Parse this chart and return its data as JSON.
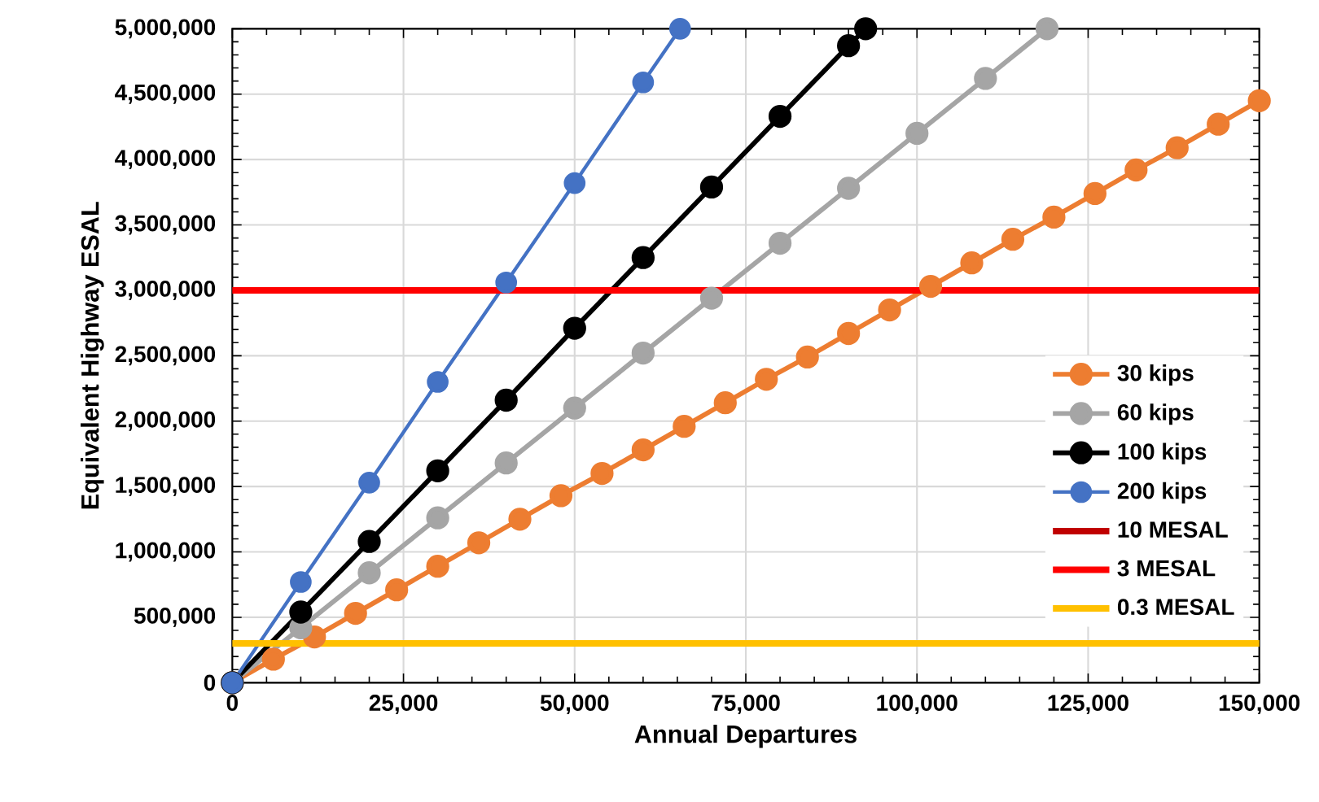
{
  "chart_data": {
    "type": "line",
    "xlabel": "Annual Departures",
    "ylabel": "Equivalent Highway ESAL",
    "xlim": [
      0,
      150000
    ],
    "ylim": [
      0,
      5000000
    ],
    "xticks": [
      0,
      {
        "value": 25000,
        "label": "25,000"
      },
      {
        "value": 50000,
        "label": "50,000"
      },
      {
        "value": 75000,
        "label": "75,000"
      },
      {
        "value": 100000,
        "label": "100,000"
      },
      {
        "value": 125000,
        "label": "125,000"
      },
      {
        "value": 150000,
        "label": "150,000"
      }
    ],
    "yticks": [
      0,
      {
        "value": 500000,
        "label": "500,000"
      },
      {
        "value": 1000000,
        "label": "1,000,000"
      },
      {
        "value": 1500000,
        "label": "1,500,000"
      },
      {
        "value": 2000000,
        "label": "2,000,000"
      },
      {
        "value": 2500000,
        "label": "2,500,000"
      },
      {
        "value": 3000000,
        "label": "3,000,000"
      },
      {
        "value": 3500000,
        "label": "3,500,000"
      },
      {
        "value": 4000000,
        "label": "4,000,000"
      },
      {
        "value": 4500000,
        "label": "4,500,000"
      },
      {
        "value": 5000000,
        "label": "5,000,000"
      }
    ],
    "grid": true,
    "legend": "bottom right",
    "marker": "circle",
    "series": [
      {
        "name": "30 kips",
        "color": "#ed7d31",
        "x": [
          0,
          6000,
          12000,
          18000,
          24000,
          30000,
          36000,
          42000,
          48000,
          54000,
          60000,
          66000,
          72000,
          78000,
          84000,
          90000,
          96000,
          102000,
          108000,
          114000,
          120000,
          126000,
          132000,
          138000,
          144000,
          150000
        ],
        "values": [
          0,
          180000,
          350000,
          530000,
          710000,
          890000,
          1070000,
          1250000,
          1430000,
          1600000,
          1780000,
          1960000,
          2140000,
          2320000,
          2490000,
          2670000,
          2850000,
          3030000,
          3210000,
          3390000,
          3560000,
          3740000,
          3920000,
          4090000,
          4270000,
          4450000
        ]
      },
      {
        "name": "60 kips",
        "color": "#a5a5a5",
        "x": [
          0,
          10000,
          20000,
          30000,
          40000,
          50000,
          60000,
          70000,
          80000,
          90000,
          100000,
          110000,
          119000
        ],
        "values": [
          0,
          420000,
          840000,
          1260000,
          1680000,
          2100000,
          2520000,
          2940000,
          3360000,
          3780000,
          4200000,
          4620000,
          5000000
        ]
      },
      {
        "name": "100 kips",
        "color": "#000000",
        "x": [
          0,
          10000,
          20000,
          30000,
          40000,
          50000,
          60000,
          70000,
          80000,
          90000,
          92500
        ],
        "values": [
          0,
          540000,
          1080000,
          1620000,
          2160000,
          2710000,
          3250000,
          3790000,
          4330000,
          4870000,
          5000000
        ]
      },
      {
        "name": "200 kips",
        "color": "#4472c4",
        "x": [
          0,
          10000,
          20000,
          30000,
          40000,
          50000,
          60000,
          65400
        ],
        "values": [
          0,
          770000,
          1530000,
          2300000,
          3060000,
          3820000,
          4590000,
          5000000
        ]
      },
      {
        "name": "10 MESAL",
        "color": "#c00000",
        "marker": "none",
        "values": [
          null
        ]
      },
      {
        "name": "3 MESAL",
        "color": "#ff0000",
        "marker": "none",
        "x": [
          0,
          150000
        ],
        "values": [
          3000000,
          3000000
        ]
      },
      {
        "name": "0.3 MESAL",
        "color": "#ffc000",
        "marker": "none",
        "x": [
          0,
          150000
        ],
        "values": [
          300000,
          300000
        ]
      }
    ]
  }
}
